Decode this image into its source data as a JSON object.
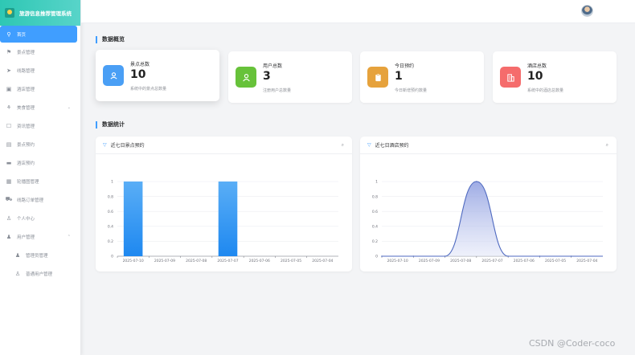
{
  "app": {
    "title": "旅游信息推荐管理系统"
  },
  "sidebar": {
    "items": [
      {
        "label": "首页",
        "icon": "location-icon",
        "active": true
      },
      {
        "label": "景点管理",
        "icon": "flag-icon"
      },
      {
        "label": "线路管理",
        "icon": "send-icon"
      },
      {
        "label": "酒店管理",
        "icon": "calendar-icon"
      },
      {
        "label": "美食管理",
        "icon": "food-icon",
        "expandable": true
      },
      {
        "label": "资讯管理",
        "icon": "chat-icon"
      },
      {
        "label": "景点预约",
        "icon": "doc-icon"
      },
      {
        "label": "酒店预约",
        "icon": "ticket-icon"
      },
      {
        "label": "轮播图管理",
        "icon": "picture-icon"
      },
      {
        "label": "线路订单管理",
        "icon": "truck-icon"
      },
      {
        "label": "个人中心",
        "icon": "user-icon"
      },
      {
        "label": "用户管理",
        "icon": "user-filled-icon",
        "expandable": true,
        "expanded": true
      },
      {
        "label": "管理员管理",
        "icon": "avatar-icon",
        "sub": true
      },
      {
        "label": "普通用户管理",
        "icon": "user-icon",
        "sub": true
      }
    ]
  },
  "overview": {
    "title": "数据概览",
    "cards": [
      {
        "label": "景点总数",
        "value": "10",
        "desc": "系统中的景点总数量",
        "color": "#4a9ff5",
        "icon": "spot-icon"
      },
      {
        "label": "用户总数",
        "value": "3",
        "desc": "注册用户总数量",
        "color": "#67c23a",
        "icon": "user-icon"
      },
      {
        "label": "今日预约",
        "value": "1",
        "desc": "今日新增预约数量",
        "color": "#e6a23c",
        "icon": "clipboard-icon"
      },
      {
        "label": "酒店总数",
        "value": "10",
        "desc": "系统中的酒店总数量",
        "color": "#f56c6c",
        "icon": "building-icon"
      }
    ]
  },
  "stats": {
    "title": "数据统计"
  },
  "chart_data": [
    {
      "type": "bar",
      "title": "近七日景点预约",
      "categories": [
        "2025-07-10",
        "2025-07-09",
        "2025-07-08",
        "2025-07-07",
        "2025-07-06",
        "2025-07-05",
        "2025-07-04"
      ],
      "values": [
        1,
        0,
        0,
        1,
        0,
        0,
        0
      ],
      "ylim": [
        0,
        1
      ],
      "yticks": [
        "0",
        "0.2",
        "0.4",
        "0.6",
        "0.8",
        "1"
      ],
      "color": "#1e88f0",
      "grid": true
    },
    {
      "type": "area",
      "title": "近七日酒店预约",
      "categories": [
        "2025-07-10",
        "2025-07-09",
        "2025-07-08",
        "2025-07-07",
        "2025-07-06",
        "2025-07-05",
        "2025-07-04"
      ],
      "values": [
        0,
        0,
        0,
        1,
        0,
        0,
        0
      ],
      "ylim": [
        0,
        1
      ],
      "yticks": [
        "0",
        "0.2",
        "0.4",
        "0.6",
        "0.8",
        "1"
      ],
      "color": "#4f6ac0",
      "grid": true
    }
  ],
  "watermark": "CSDN @Coder-coco"
}
